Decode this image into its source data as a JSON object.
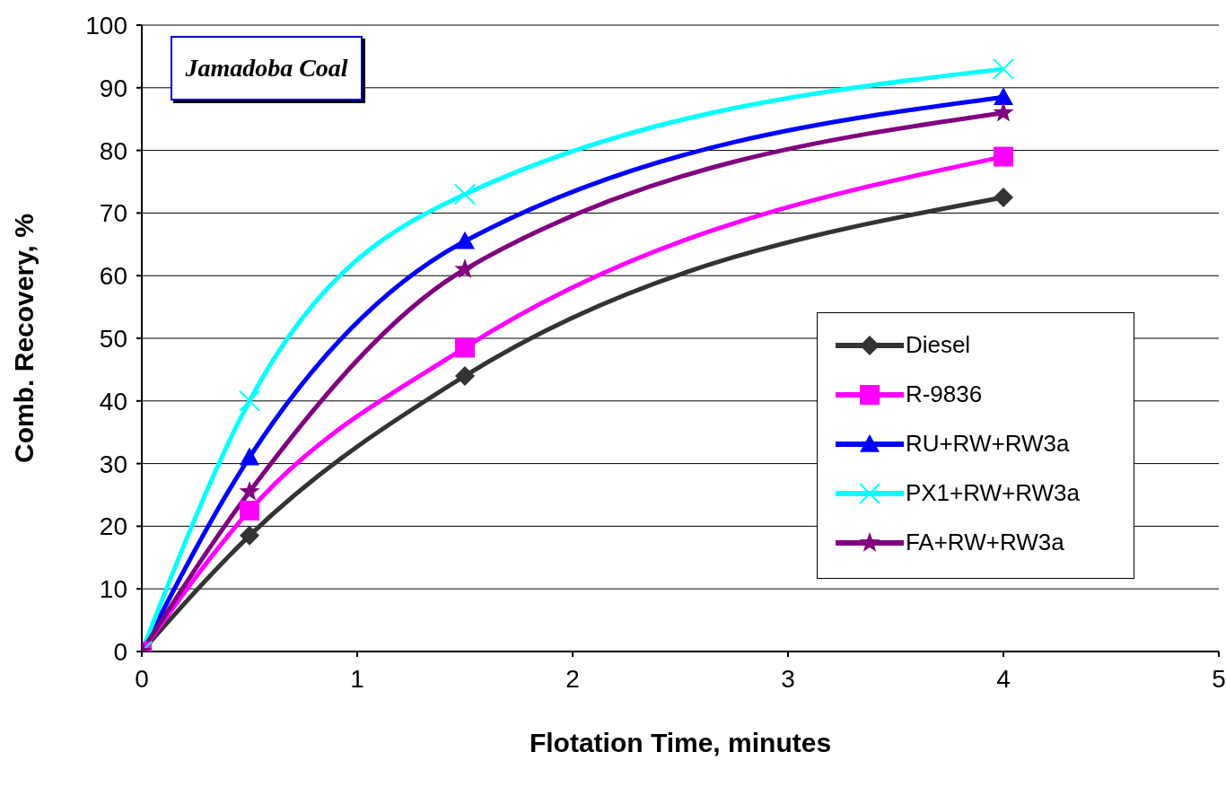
{
  "chart_data": {
    "type": "line",
    "xlabel": "Flotation Time, minutes",
    "ylabel": "Comb. Recovery, %",
    "annotations": [
      "Jamadoba Coal"
    ],
    "x": [
      0,
      0.5,
      1.5,
      4
    ],
    "xlim": [
      0,
      5
    ],
    "xticks": [
      0,
      1,
      2,
      3,
      4,
      5
    ],
    "ylim": [
      0,
      100
    ],
    "yticks": [
      0,
      10,
      20,
      30,
      40,
      50,
      60,
      70,
      80,
      90,
      100
    ],
    "grid": "y",
    "legend": "right",
    "line_style": "solid",
    "series": [
      {
        "name": "Diesel",
        "color": "#333333",
        "marker": "diamond",
        "values": [
          0,
          18.5,
          44,
          72.5
        ]
      },
      {
        "name": "R-9836",
        "color": "#ff00ff",
        "marker": "square",
        "values": [
          0,
          22.5,
          48.5,
          79
        ]
      },
      {
        "name": "RU+RW+RW3a",
        "color": "#0000ff",
        "marker": "triangle",
        "values": [
          0,
          31,
          65.5,
          88.5
        ]
      },
      {
        "name": "PX1+RW+RW3a",
        "color": "#00ffff",
        "marker": "cross",
        "values": [
          0,
          40,
          73,
          93
        ]
      },
      {
        "name": "FA+RW+RW3a",
        "color": "#800080",
        "marker": "star",
        "values": [
          0,
          25.5,
          61,
          86
        ]
      }
    ]
  }
}
